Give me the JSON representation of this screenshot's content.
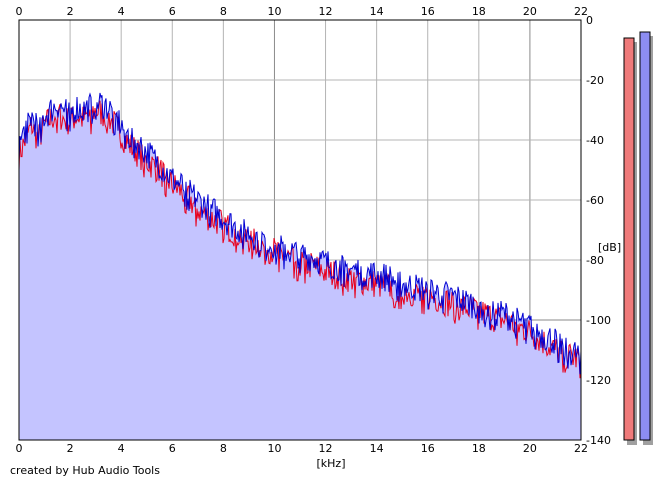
{
  "colors": {
    "fill": "#c4c4ff",
    "left_channel": "#e8001c",
    "right_channel": "#0000d2",
    "grid": "#b4b4b4",
    "grid_major": "#8a8a8a",
    "meter_left": "#ef7a7a",
    "meter_right": "#8d8df2"
  },
  "chart_data": {
    "type": "area",
    "title": "",
    "xlabel": "[kHz]",
    "ylabel": "[dB]",
    "xlim": [
      0,
      22
    ],
    "ylim": [
      -140,
      0
    ],
    "x_ticks": [
      "0",
      "2",
      "4",
      "6",
      "8",
      "10",
      "12",
      "14",
      "16",
      "18",
      "20",
      "22"
    ],
    "y_ticks": [
      "0",
      "-20",
      "-40",
      "-60",
      "-80",
      "-100",
      "-120",
      "-140"
    ],
    "grid": true,
    "x": [
      0,
      0.25,
      0.5,
      0.75,
      1,
      1.25,
      1.5,
      1.75,
      2,
      2.25,
      2.5,
      2.75,
      3,
      3.25,
      3.5,
      3.75,
      4,
      4.25,
      4.5,
      4.75,
      5,
      5.5,
      6,
      6.5,
      7,
      7.5,
      8,
      8.5,
      9,
      9.5,
      10,
      10.5,
      11,
      11.5,
      12,
      12.5,
      13,
      13.5,
      14,
      14.5,
      15,
      15.5,
      16,
      16.5,
      17,
      17.5,
      18,
      18.5,
      19,
      19.5,
      20,
      20.5,
      21,
      21.5,
      22
    ],
    "series": [
      {
        "channel": "left",
        "values": [
          -45,
          -40,
          -35,
          -40,
          -35,
          -33,
          -31,
          -33,
          -34,
          -32,
          -33,
          -32,
          -30,
          -31,
          -32,
          -35,
          -38,
          -41,
          -43,
          -45,
          -47,
          -50,
          -55,
          -58,
          -63,
          -66,
          -68,
          -71,
          -73,
          -75,
          -77,
          -79,
          -81,
          -82,
          -84,
          -85,
          -86,
          -87,
          -88,
          -89,
          -90,
          -91,
          -92,
          -93,
          -95,
          -96,
          -97,
          -99,
          -100,
          -102,
          -104,
          -107,
          -110,
          -112,
          -113
        ]
      },
      {
        "channel": "right",
        "values": [
          -42,
          -36,
          -32,
          -36,
          -32,
          -30,
          -28,
          -30,
          -31,
          -29,
          -30,
          -29,
          -27,
          -28,
          -29,
          -32,
          -35,
          -38,
          -40,
          -42,
          -44,
          -48,
          -53,
          -56,
          -60,
          -63,
          -66,
          -69,
          -71,
          -73,
          -75,
          -77,
          -78,
          -79,
          -81,
          -82,
          -83,
          -84,
          -85,
          -86,
          -88,
          -89,
          -90,
          -91,
          -92,
          -94,
          -95,
          -97,
          -98,
          -100,
          -102,
          -105,
          -107,
          -110,
          -112
        ]
      }
    ],
    "level_meters": [
      {
        "channel": "left",
        "level_db": -6
      },
      {
        "channel": "right",
        "level_db": -4
      }
    ]
  },
  "footer": {
    "credit": "created by Hub Audio Tools"
  }
}
